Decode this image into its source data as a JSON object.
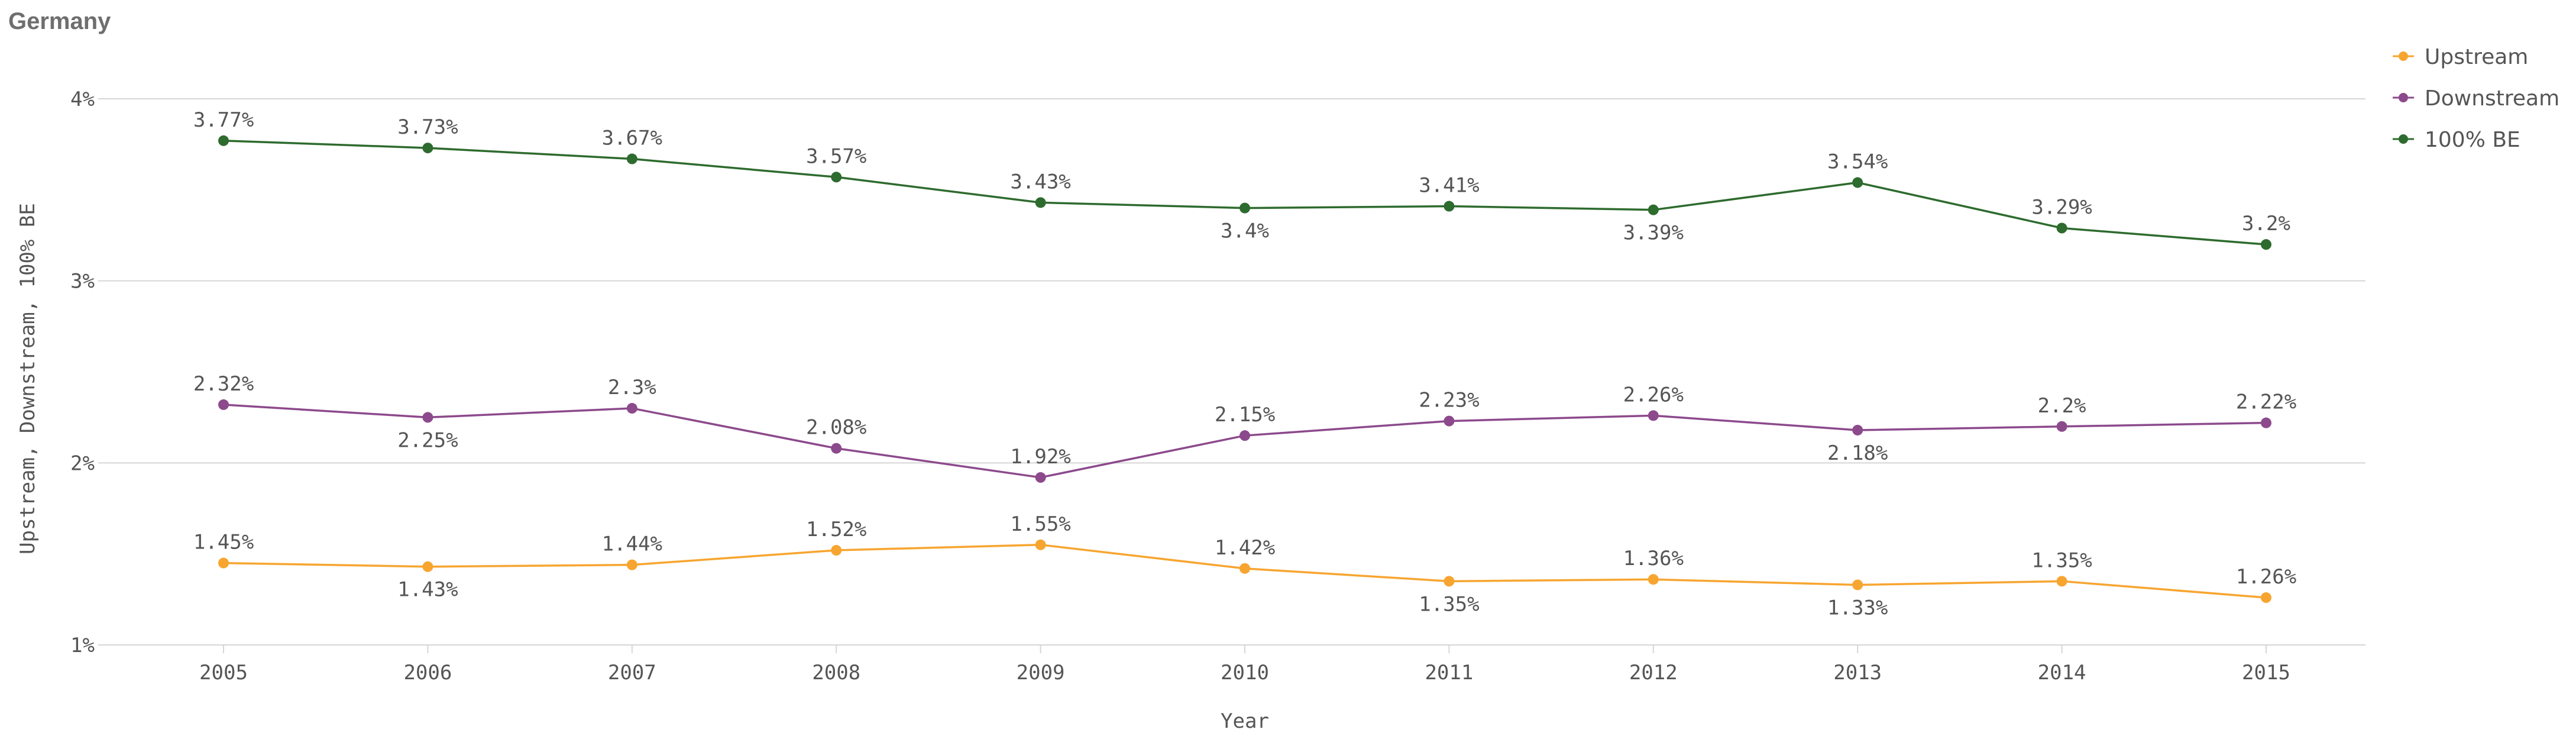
{
  "chart_data": {
    "type": "line",
    "title": "Germany",
    "xlabel": "Year",
    "ylabel": "Upstream, Downstream, 100% BE",
    "x": [
      "2005",
      "2006",
      "2007",
      "2008",
      "2009",
      "2010",
      "2011",
      "2012",
      "2013",
      "2014",
      "2015"
    ],
    "ylim": [
      1,
      4
    ],
    "yticks": [
      1,
      2,
      3,
      4
    ],
    "ytick_labels": [
      "1%",
      "2%",
      "3%",
      "4%"
    ],
    "grid": true,
    "legend_position": "top-right",
    "series": [
      {
        "name": "Upstream",
        "color": "#f7a530",
        "values": [
          1.45,
          1.43,
          1.44,
          1.52,
          1.55,
          1.42,
          1.35,
          1.36,
          1.33,
          1.35,
          1.26
        ],
        "labels": [
          "1.45%",
          "1.43%",
          "1.44%",
          "1.52%",
          "1.55%",
          "1.42%",
          "1.35%",
          "1.36%",
          "1.33%",
          "1.35%",
          "1.26%"
        ],
        "label_positions": [
          "above",
          "below",
          "above",
          "above",
          "above",
          "above",
          "below",
          "above",
          "below",
          "above",
          "above"
        ]
      },
      {
        "name": "Downstream",
        "color": "#8c4a8c",
        "values": [
          2.32,
          2.25,
          2.3,
          2.08,
          1.92,
          2.15,
          2.23,
          2.26,
          2.18,
          2.2,
          2.22
        ],
        "labels": [
          "2.32%",
          "2.25%",
          "2.3%",
          "2.08%",
          "1.92%",
          "2.15%",
          "2.23%",
          "2.26%",
          "2.18%",
          "2.2%",
          "2.22%"
        ],
        "label_positions": [
          "above",
          "below",
          "above",
          "above",
          "above",
          "above",
          "above",
          "above",
          "below",
          "above",
          "above"
        ]
      },
      {
        "name": "100% BE",
        "color": "#2e6b2e",
        "values": [
          3.77,
          3.73,
          3.67,
          3.57,
          3.43,
          3.4,
          3.41,
          3.39,
          3.54,
          3.29,
          3.2
        ],
        "labels": [
          "3.77%",
          "3.73%",
          "3.67%",
          "3.57%",
          "3.43%",
          "3.4%",
          "3.41%",
          "3.39%",
          "3.54%",
          "3.29%",
          "3.2%"
        ],
        "label_positions": [
          "above",
          "above",
          "above",
          "above",
          "above",
          "below",
          "above",
          "below",
          "above",
          "above",
          "above"
        ]
      }
    ]
  }
}
